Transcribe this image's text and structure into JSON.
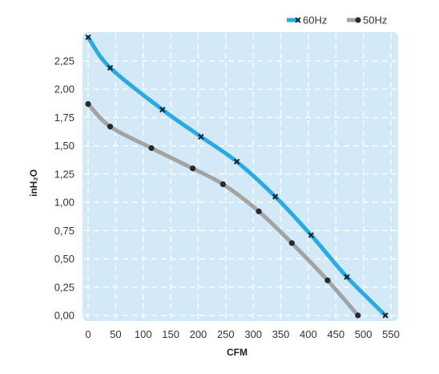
{
  "chart_data": {
    "type": "line",
    "xlabel": "CFM",
    "ylabel": "inH₂O",
    "xlim": [
      0,
      550
    ],
    "ylim": [
      0,
      2.5
    ],
    "xticks": [
      "0",
      "50",
      "100",
      "150",
      "200",
      "250",
      "300",
      "350",
      "400",
      "450",
      "500",
      "550"
    ],
    "yticks": [
      "0,00",
      "0,25",
      "0,50",
      "0,75",
      "1,00",
      "1,25",
      "1,50",
      "1,75",
      "2,00",
      "2,25"
    ],
    "grid": true,
    "legend_position": "top-right",
    "plot_background": "#d4e9f8",
    "series": [
      {
        "name": "60Hz",
        "color": "#29aae1",
        "marker": "x",
        "points": [
          [
            0,
            2.46
          ],
          [
            40,
            2.19
          ],
          [
            135,
            1.82
          ],
          [
            205,
            1.58
          ],
          [
            270,
            1.36
          ],
          [
            340,
            1.05
          ],
          [
            405,
            0.71
          ],
          [
            470,
            0.34
          ],
          [
            540,
            0.0
          ]
        ]
      },
      {
        "name": "50Hz",
        "color": "#a3a3a3",
        "marker": "dot",
        "points": [
          [
            0,
            1.87
          ],
          [
            40,
            1.67
          ],
          [
            115,
            1.48
          ],
          [
            190,
            1.3
          ],
          [
            245,
            1.16
          ],
          [
            310,
            0.92
          ],
          [
            370,
            0.64
          ],
          [
            435,
            0.31
          ],
          [
            490,
            0.0
          ]
        ]
      }
    ]
  }
}
